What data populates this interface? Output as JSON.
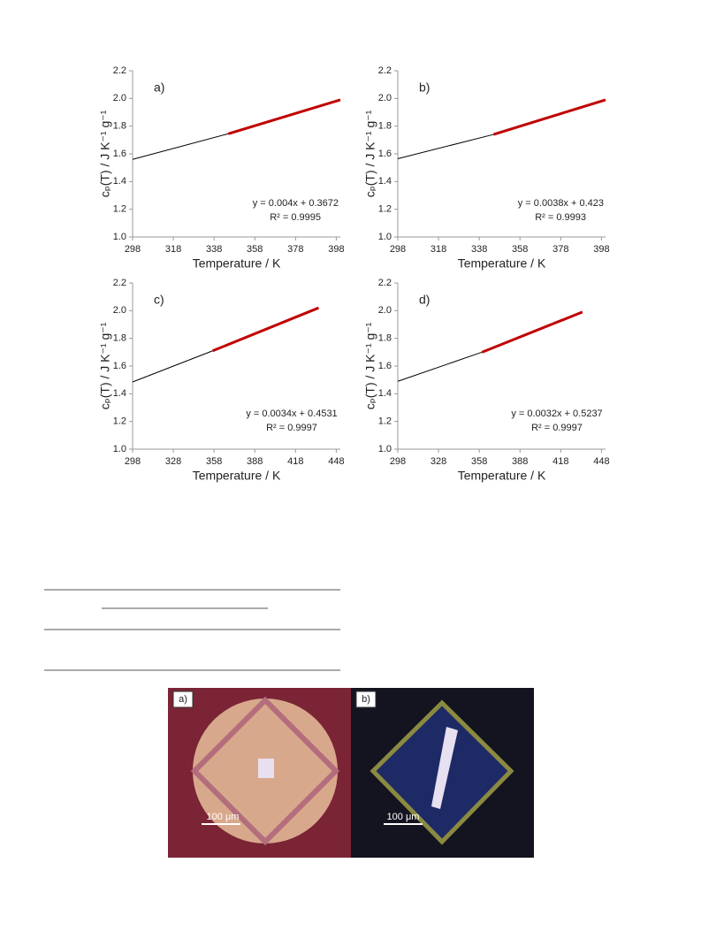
{
  "chart_data": [
    {
      "type": "line",
      "panel_label": "a)",
      "xlabel": "Temperature / K",
      "ylabel": "cₚ(T) / J K⁻¹ g⁻¹",
      "xlim": [
        298,
        400
      ],
      "ylim": [
        1.0,
        2.2
      ],
      "xticks": [
        298,
        318,
        338,
        358,
        378,
        398
      ],
      "yticks": [
        {
          "value": 1.0,
          "label": "1.0"
        },
        {
          "value": 1.2,
          "label": "1.2"
        },
        {
          "value": 1.4,
          "label": "1.4"
        },
        {
          "value": 1.6,
          "label": "1.6"
        },
        {
          "value": 1.8,
          "label": "1.8"
        },
        {
          "value": 2.0,
          "label": "2.0"
        },
        {
          "value": 2.2,
          "label": "2.2"
        }
      ],
      "series": [
        {
          "color": "#000000",
          "x": [
            298,
            345
          ],
          "values": [
            1.56,
            1.745
          ]
        },
        {
          "color": "#c00000",
          "x": [
            345,
            400
          ],
          "values": [
            1.745,
            1.99
          ]
        }
      ],
      "equation": "y = 0.004x + 0.3672",
      "r_squared": "R² = 0.9995"
    },
    {
      "type": "line",
      "panel_label": "b)",
      "xlabel": "Temperature / K",
      "ylabel": "cₚ(T) / J K⁻¹ g⁻¹",
      "xlim": [
        298,
        400
      ],
      "ylim": [
        1.0,
        2.2
      ],
      "xticks": [
        298,
        318,
        338,
        358,
        378,
        398
      ],
      "yticks": [
        {
          "value": 1.0,
          "label": "1.0"
        },
        {
          "value": 1.2,
          "label": "1.2"
        },
        {
          "value": 1.4,
          "label": "1.4"
        },
        {
          "value": 1.6,
          "label": "1.6"
        },
        {
          "value": 1.8,
          "label": "1.8"
        },
        {
          "value": 2.0,
          "label": "2.0"
        },
        {
          "value": 2.2,
          "label": "2.2"
        }
      ],
      "series": [
        {
          "color": "#000000",
          "x": [
            298,
            345
          ],
          "values": [
            1.565,
            1.74
          ]
        },
        {
          "color": "#c00000",
          "x": [
            345,
            400
          ],
          "values": [
            1.74,
            1.99
          ]
        }
      ],
      "equation": "y = 0.0038x + 0.423",
      "r_squared": "R² = 0.9993"
    },
    {
      "type": "line",
      "panel_label": "c)",
      "xlabel": "Temperature / K",
      "ylabel": "cₚ(T) / J K⁻¹ g⁻¹",
      "xlim": [
        298,
        451
      ],
      "ylim": [
        1.0,
        2.2
      ],
      "xticks": [
        298,
        328,
        358,
        388,
        418,
        448
      ],
      "yticks": [
        {
          "value": 1.0,
          "label": "1.0"
        },
        {
          "value": 1.2,
          "label": "1.2"
        },
        {
          "value": 1.4,
          "label": "1.4"
        },
        {
          "value": 1.6,
          "label": "1.6"
        },
        {
          "value": 1.8,
          "label": "1.8"
        },
        {
          "value": 2.0,
          "label": "2.0"
        },
        {
          "value": 2.2,
          "label": "2.2"
        }
      ],
      "series": [
        {
          "color": "#000000",
          "x": [
            298,
            357
          ],
          "values": [
            1.485,
            1.71
          ]
        },
        {
          "color": "#c00000",
          "x": [
            357,
            435
          ],
          "values": [
            1.71,
            2.02
          ]
        }
      ],
      "equation": "y = 0.0034x + 0.4531",
      "r_squared": "R² = 0.9997"
    },
    {
      "type": "line",
      "panel_label": "d)",
      "xlabel": "Temperature / K",
      "ylabel": "cₚ(T) / J K⁻¹ g⁻¹",
      "xlim": [
        298,
        451
      ],
      "ylim": [
        1.0,
        2.2
      ],
      "xticks": [
        298,
        328,
        358,
        388,
        418,
        448
      ],
      "yticks": [
        {
          "value": 1.0,
          "label": "1.0"
        },
        {
          "value": 1.2,
          "label": "1.2"
        },
        {
          "value": 1.4,
          "label": "1.4"
        },
        {
          "value": 1.6,
          "label": "1.6"
        },
        {
          "value": 1.8,
          "label": "1.8"
        },
        {
          "value": 2.0,
          "label": "2.0"
        },
        {
          "value": 2.2,
          "label": "2.2"
        }
      ],
      "series": [
        {
          "color": "#000000",
          "x": [
            298,
            360
          ],
          "values": [
            1.49,
            1.7
          ]
        },
        {
          "color": "#c00000",
          "x": [
            360,
            434
          ],
          "values": [
            1.7,
            1.99
          ]
        }
      ],
      "equation": "y = 0.0032x + 0.5237",
      "r_squared": "R² = 0.9997"
    }
  ],
  "micrographs": {
    "panels": [
      {
        "label": "a)",
        "scale": "100 μm"
      },
      {
        "label": "b)",
        "scale": "100 μm"
      }
    ]
  }
}
